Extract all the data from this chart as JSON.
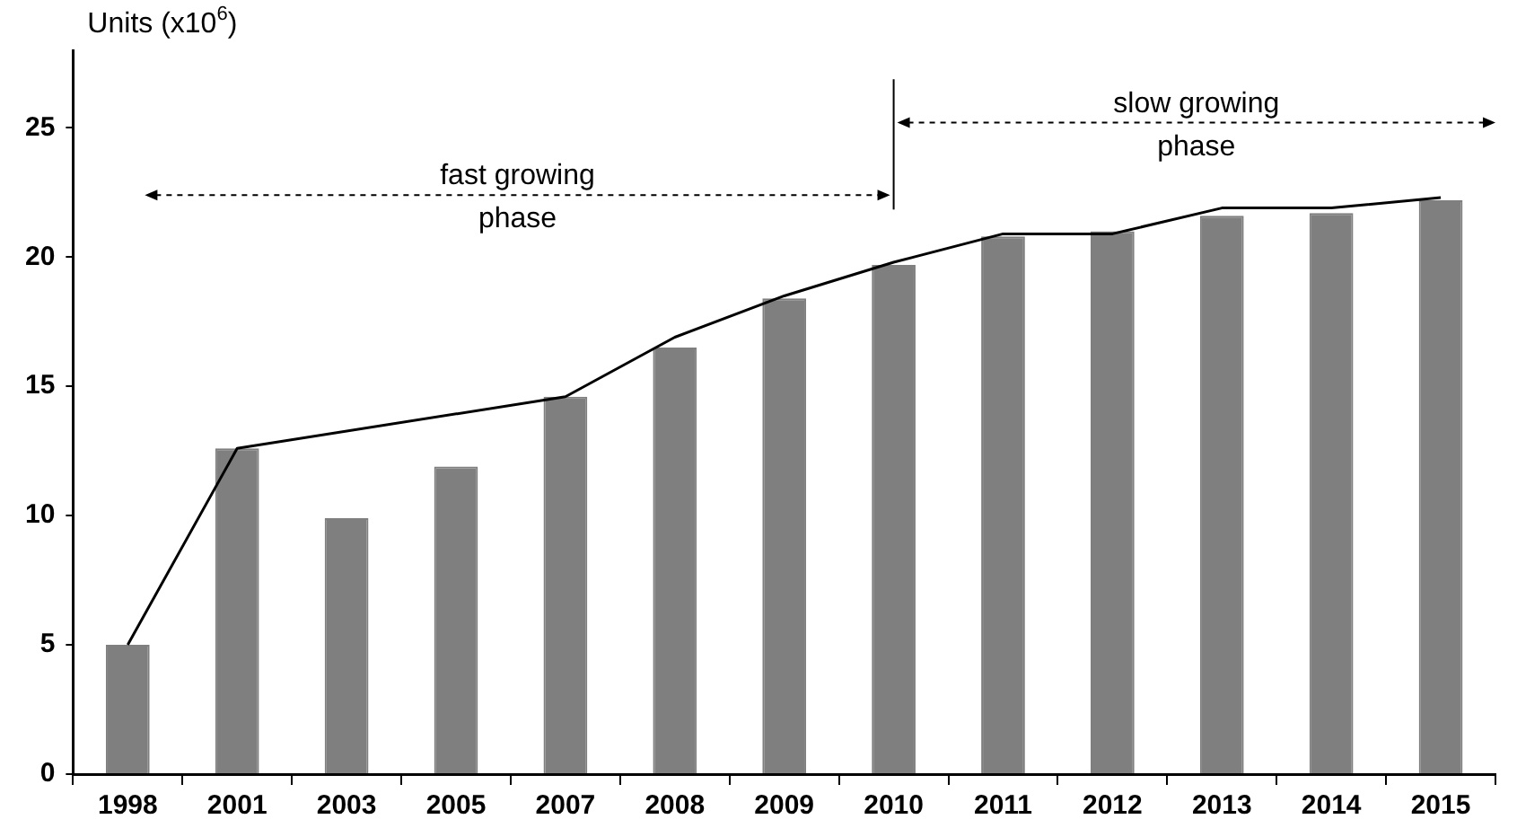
{
  "chart_data": {
    "type": "bar",
    "ylabel": "Units (x10$^{6}$)",
    "categories": [
      "1998",
      "2001",
      "2003",
      "2005",
      "2007",
      "2008",
      "2009",
      "2010",
      "2011",
      "2012",
      "2013",
      "2014",
      "2015"
    ],
    "series": [
      {
        "color": "#7f7f7f",
        "values": [
          5.0,
          12.6,
          9.9,
          11.9,
          14.6,
          16.5,
          18.4,
          19.7,
          20.8,
          21.0,
          21.6,
          21.7,
          22.2
        ]
      },
      {
        "type": "line",
        "color": "#000000",
        "values": [
          5.0,
          12.6,
          null,
          null,
          14.6,
          16.9,
          18.5,
          19.8,
          20.9,
          20.9,
          21.9,
          21.9,
          22.3
        ]
      }
    ],
    "ylim": [
      0,
      28
    ],
    "yticks": [
      0,
      5,
      10,
      15,
      20,
      25
    ],
    "grid": false,
    "legend": false,
    "line_style": "solid",
    "ref_lines": [
      {
        "axis": "x",
        "value": "2010",
        "color": "#000000"
      }
    ],
    "annotations": [
      "fast growing phase",
      "slow growing phase"
    ]
  }
}
